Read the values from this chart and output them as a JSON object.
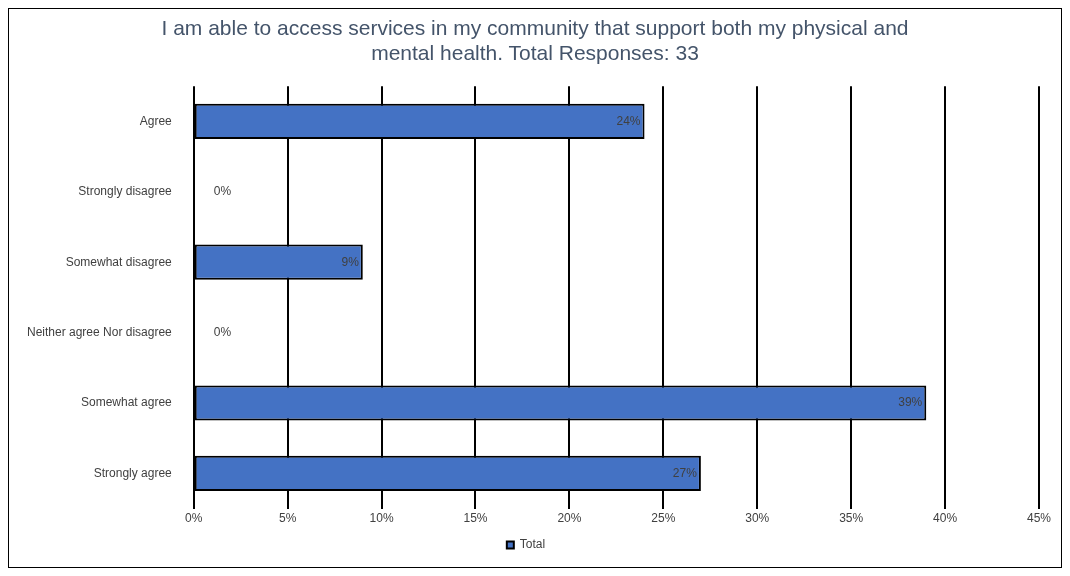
{
  "chart_data": {
    "type": "bar",
    "orientation": "horizontal",
    "title": "I am able to access services in my community that support both my physical and mental health. Total Responses: 33",
    "categories": [
      "Agree",
      "Strongly disagree",
      "Somewhat disagree",
      "Neither agree Nor disagree",
      "Somewhat agree",
      "Strongly agree"
    ],
    "series": [
      {
        "name": "Total",
        "color": "#4472c4",
        "values": [
          24,
          0,
          9,
          0,
          39,
          27
        ]
      }
    ],
    "value_labels": [
      "24%",
      "0%",
      "9%",
      "0%",
      "39%",
      "27%"
    ],
    "xlim": [
      0,
      45
    ],
    "xticks": [
      {
        "value": 0,
        "label": "0%"
      },
      {
        "value": 5,
        "label": "5%"
      },
      {
        "value": 10,
        "label": "10%"
      },
      {
        "value": 15,
        "label": "15%"
      },
      {
        "value": 20,
        "label": "20%"
      },
      {
        "value": 25,
        "label": "25%"
      },
      {
        "value": 30,
        "label": "30%"
      },
      {
        "value": 35,
        "label": "35%"
      },
      {
        "value": 40,
        "label": "40%"
      },
      {
        "value": 45,
        "label": "45%"
      }
    ],
    "grid": "x",
    "legend": "bottom"
  }
}
